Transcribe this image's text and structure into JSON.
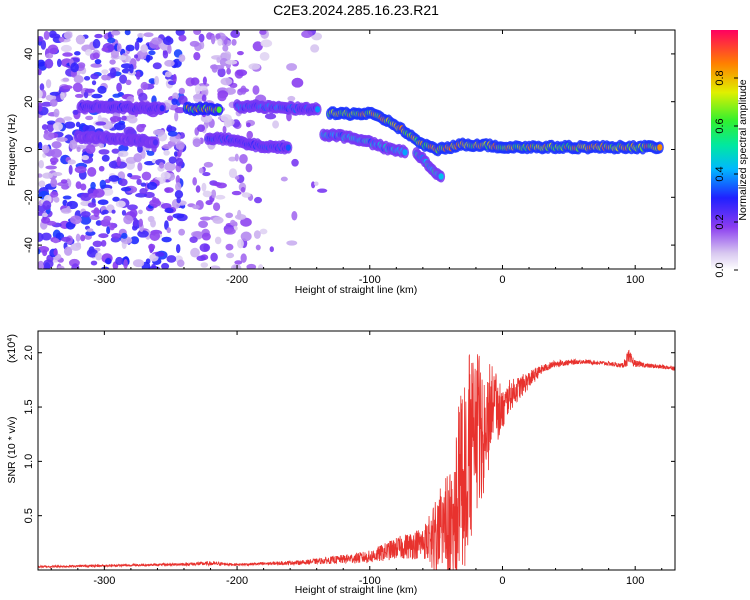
{
  "chart_data": [
    {
      "type": "heatmap",
      "title": "C2E3.2024.285.16.23.R21",
      "xlabel": "Height of straight line (km)",
      "ylabel": "Frequency (Hz)",
      "xlim": [
        -350,
        130
      ],
      "ylim": [
        -50,
        50
      ],
      "xticks": [
        "-300",
        "-200",
        "-100",
        "0",
        "100"
      ],
      "xtick_values": [
        -300,
        -200,
        -100,
        0,
        100
      ],
      "yticks": [
        "-40",
        "-20",
        "0",
        "20",
        "40"
      ],
      "ytick_values": [
        -40,
        -20,
        0,
        20,
        40
      ],
      "colorbar": {
        "label": "Normalized spectral amplitude",
        "ticks": [
          "0.0",
          "0.2",
          "0.4",
          "0.6",
          "0.8"
        ],
        "tick_values": [
          0.0,
          0.2,
          0.4,
          0.6,
          0.8
        ],
        "range": [
          0,
          1
        ]
      },
      "tracks": [
        {
          "points": [
            [
              -318,
              18
            ],
            [
              -300,
              18
            ],
            [
              -280,
              17.5
            ],
            [
              -255,
              17
            ]
          ],
          "amp": 0.3
        },
        {
          "points": [
            [
              -238,
              17
            ],
            [
              -225,
              17
            ],
            [
              -212,
              17
            ]
          ],
          "amp": 0.85
        },
        {
          "points": [
            [
              -200,
              18
            ],
            [
              -185,
              18
            ],
            [
              -170,
              17.5
            ],
            [
              -150,
              17
            ],
            [
              -138,
              17
            ]
          ],
          "amp": 0.4
        },
        {
          "points": [
            [
              -130,
              15
            ],
            [
              -115,
              15
            ],
            [
              -100,
              15
            ],
            [
              -90,
              13
            ],
            [
              -80,
              10
            ],
            [
              -70,
              6
            ],
            [
              -60,
              2
            ],
            [
              -50,
              0
            ],
            [
              -40,
              1
            ],
            [
              -30,
              2
            ],
            [
              -15,
              2
            ],
            [
              0,
              1
            ],
            [
              10,
              1
            ],
            [
              30,
              1
            ],
            [
              60,
              1
            ],
            [
              90,
              1
            ],
            [
              120,
              1
            ]
          ],
          "amp": 0.9
        },
        {
          "points": [
            [
              -320,
              5
            ],
            [
              -300,
              5
            ],
            [
              -280,
              4
            ],
            [
              -260,
              3
            ]
          ],
          "amp": 0.25
        },
        {
          "points": [
            [
              -222,
              5
            ],
            [
              -205,
              4
            ],
            [
              -190,
              2
            ],
            [
              -175,
              1
            ],
            [
              -160,
              1
            ]
          ],
          "amp": 0.35
        },
        {
          "points": [
            [
              -135,
              6
            ],
            [
              -125,
              6
            ],
            [
              -115,
              5
            ],
            [
              -105,
              4
            ],
            [
              -95,
              2
            ],
            [
              -85,
              0
            ],
            [
              -72,
              -1
            ]
          ],
          "amp": 0.5
        },
        {
          "points": [
            [
              -65,
              -2
            ],
            [
              -60,
              -4
            ],
            [
              -55,
              -7
            ],
            [
              -50,
              -10
            ],
            [
              -45,
              -12
            ]
          ],
          "amp": 0.55
        }
      ]
    },
    {
      "type": "line",
      "xlabel": "Height of straight line (km)",
      "ylabel": "SNR (10 * v/v)",
      "y_multiplier": "(x10",
      "y_multiplier_exp": "4",
      "y_multiplier_close": ")",
      "xlim": [
        -350,
        130
      ],
      "ylim": [
        0,
        2.2
      ],
      "xticks": [
        "-300",
        "-200",
        "-100",
        "0",
        "100"
      ],
      "xtick_values": [
        -300,
        -200,
        -100,
        0,
        100
      ],
      "yticks": [
        "0.5",
        "1.0",
        "1.5",
        "2.0"
      ],
      "ytick_values": [
        0.5,
        1.0,
        1.5,
        2.0
      ],
      "series": [
        {
          "color": "#e8322e",
          "x": [
            -350,
            -300,
            -250,
            -220,
            -200,
            -150,
            -120,
            -100,
            -80,
            -60,
            -50,
            -40,
            -35,
            -30,
            -25,
            -20,
            -15,
            -10,
            -5,
            0,
            5,
            10,
            20,
            30,
            40,
            60,
            80,
            90,
            95,
            100,
            110,
            120,
            130
          ],
          "y": [
            0.03,
            0.04,
            0.05,
            0.06,
            0.05,
            0.07,
            0.1,
            0.12,
            0.2,
            0.25,
            0.35,
            0.5,
            0.7,
            0.9,
            1.2,
            1.45,
            1.3,
            1.5,
            1.6,
            1.45,
            1.6,
            1.65,
            1.75,
            1.85,
            1.9,
            1.92,
            1.9,
            1.88,
            1.95,
            1.9,
            1.88,
            1.87,
            1.86
          ],
          "noise": [
            0.01,
            0.01,
            0.01,
            0.02,
            0.01,
            0.02,
            0.04,
            0.06,
            0.1,
            0.15,
            0.3,
            0.5,
            0.7,
            0.8,
            0.8,
            0.6,
            0.7,
            0.4,
            0.3,
            0.2,
            0.15,
            0.12,
            0.08,
            0.04,
            0.03,
            0.02,
            0.02,
            0.02,
            0.08,
            0.03,
            0.02,
            0.02,
            0.02
          ]
        }
      ]
    }
  ]
}
